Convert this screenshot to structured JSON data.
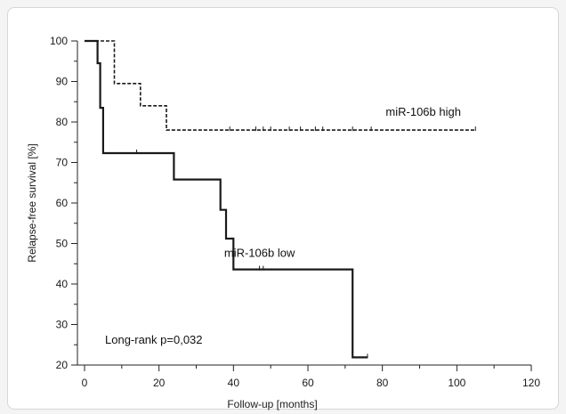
{
  "chart_data": {
    "type": "line",
    "xlabel": "Follow-up [months]",
    "ylabel": "Relapse-free survival [%]",
    "xlim": [
      0,
      120
    ],
    "ylim": [
      20,
      100
    ],
    "x_ticks": [
      0,
      20,
      40,
      60,
      80,
      100,
      120
    ],
    "y_ticks": [
      20,
      30,
      40,
      50,
      60,
      70,
      80,
      90,
      100
    ],
    "grid": false,
    "annotations": [
      "Long-rank p=0,032"
    ],
    "series": [
      {
        "name": "miR-106b high",
        "style": "dashed",
        "color": "#1a1a1a",
        "steps": [
          [
            0,
            100
          ],
          [
            8,
            100
          ],
          [
            8,
            89.5
          ],
          [
            15,
            89.5
          ],
          [
            15,
            84
          ],
          [
            22,
            84
          ],
          [
            22,
            78
          ],
          [
            105,
            78
          ]
        ],
        "censored": [
          39,
          46,
          48,
          50,
          55,
          58,
          62,
          64,
          72,
          77,
          105
        ]
      },
      {
        "name": "miR-106b low",
        "style": "solid",
        "color": "#1a1a1a",
        "steps": [
          [
            0,
            100
          ],
          [
            3.5,
            100
          ],
          [
            3.5,
            94.5
          ],
          [
            4.2,
            94.5
          ],
          [
            4.2,
            83.5
          ],
          [
            5,
            83.5
          ],
          [
            5,
            72.3
          ],
          [
            24,
            72.3
          ],
          [
            24,
            65.8
          ],
          [
            36.5,
            65.8
          ],
          [
            36.5,
            58.3
          ],
          [
            38,
            58.3
          ],
          [
            38,
            51.2
          ],
          [
            40,
            51.2
          ],
          [
            40,
            43.6
          ],
          [
            72,
            43.6
          ],
          [
            72,
            21.9
          ],
          [
            76,
            21.9
          ]
        ],
        "censored": [
          14,
          47,
          48,
          76
        ]
      }
    ]
  }
}
